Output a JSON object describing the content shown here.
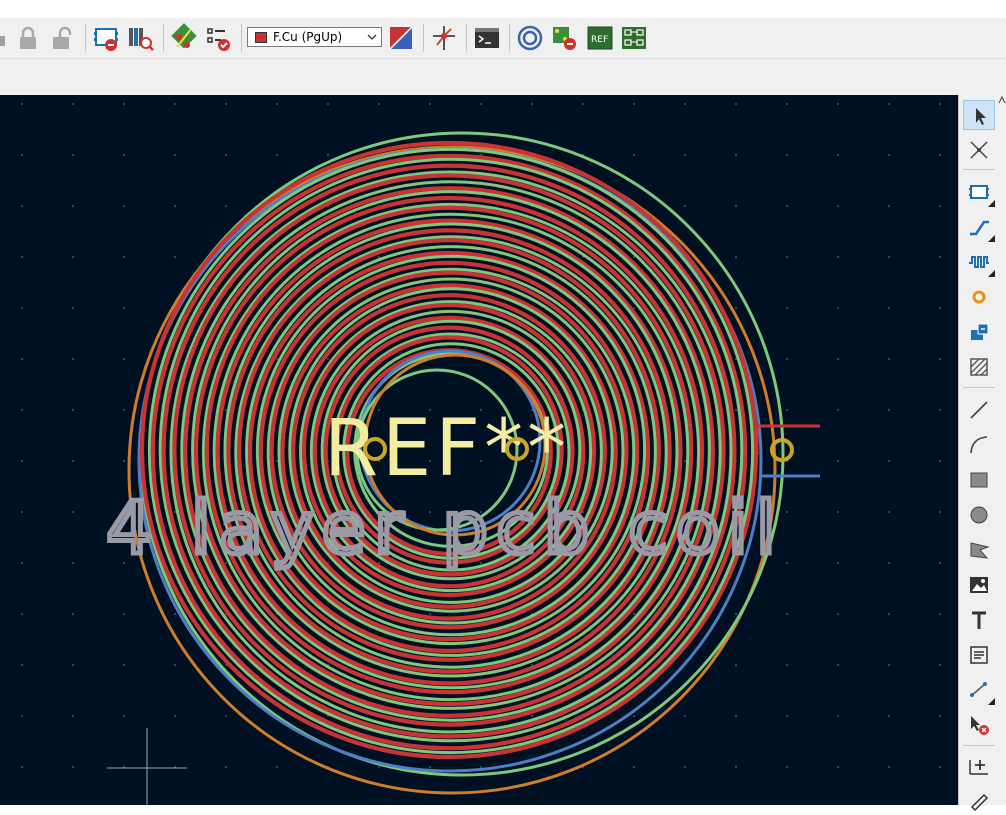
{
  "toolbar": {
    "layer_label": "F.Cu (PgUp)",
    "layer_color": "#c83434",
    "icons": [
      "lock-icon",
      "unlock-icon",
      "footprint-properties-icon",
      "footprint-browser-icon",
      "ratsnest-icon",
      "drc-icon",
      "layer-pair-icon",
      "route-icon",
      "scripting-console-icon",
      "zone-fill-icon",
      "board-setup-icon",
      "footprint-editor-icon",
      "footprint-update-icon"
    ]
  },
  "canvas": {
    "background": "#001023",
    "ref_text": "REF**",
    "value_text": "4 layer pcb coil",
    "colors": {
      "front_copper": "#c83434",
      "inner1": "#7fc87f",
      "inner2": "#4d7fc4",
      "back_copper": "#ce7d2c",
      "pad": "#c9a626",
      "ref_text": "#f2eda1",
      "value_text": "#9a9aa6"
    }
  },
  "right_toolbar": {
    "tools": [
      "select-tool",
      "local-ratsnest-tool",
      "footprint-tool",
      "route-track-tool",
      "tune-length-tool",
      "via-tool",
      "zone-tool",
      "keepout-tool",
      "line-tool",
      "arc-tool",
      "rectangle-tool",
      "circle-tool",
      "polygon-tool",
      "image-tool",
      "text-tool",
      "textbox-tool",
      "dimension-tool",
      "delete-tool",
      "anchor-tool",
      "measure-tool"
    ]
  }
}
